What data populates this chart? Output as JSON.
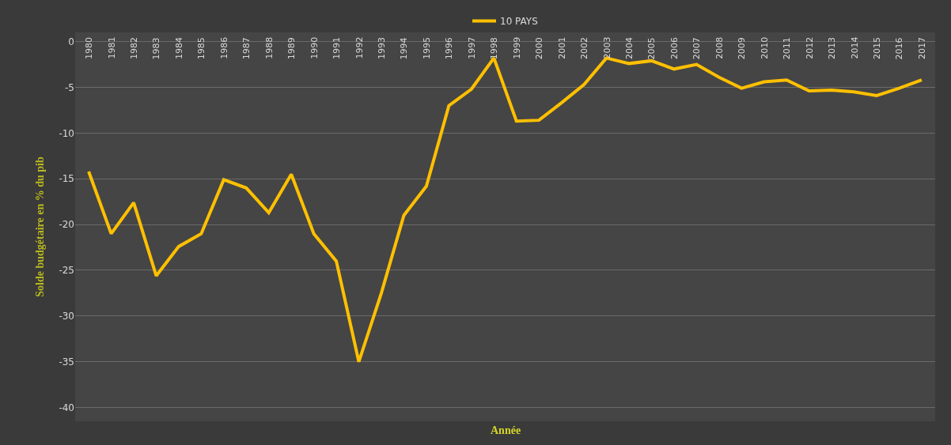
{
  "chart_data": {
    "type": "line",
    "xlabel": "Année",
    "ylabel": "Solde budgétaire en % du pib",
    "categories": [
      "1980",
      "1981",
      "1982",
      "1983",
      "1984",
      "1985",
      "1986",
      "1987",
      "1988",
      "1989",
      "1990",
      "1991",
      "1992",
      "1993",
      "1994",
      "1995",
      "1996",
      "1997",
      "1998",
      "1999",
      "2000",
      "2001",
      "2002",
      "2003",
      "2004",
      "2005",
      "2006",
      "2007",
      "2008",
      "2009",
      "2010",
      "2011",
      "2012",
      "2013",
      "2014",
      "2015",
      "2016",
      "2017"
    ],
    "series": [
      {
        "name": "10 PAYS",
        "color": "#ffc000",
        "values": [
          -14.2,
          -21,
          -17.6,
          -25.6,
          -22.4,
          -21,
          -15.1,
          -16,
          -18.7,
          -14.5,
          -21,
          -24,
          -35,
          -27.5,
          -19,
          -15.8,
          -7,
          -5.2,
          -1.8,
          -8.7,
          -8.6,
          -6.7,
          -4.7,
          -1.8,
          -2.4,
          -2.1,
          -3,
          -2.5,
          -3.9,
          -5.1,
          -4.4,
          -4.2,
          -5.4,
          -5.3,
          -5.5,
          -5.9,
          -5.1,
          -4.2
        ]
      }
    ],
    "ylim": [
      -41.5,
      1
    ],
    "yticks": [
      0,
      -5,
      -10,
      -15,
      -20,
      -25,
      -30,
      -35,
      -40
    ],
    "grid": "y",
    "legend": "top",
    "marker": "none",
    "line_style": "solid"
  }
}
